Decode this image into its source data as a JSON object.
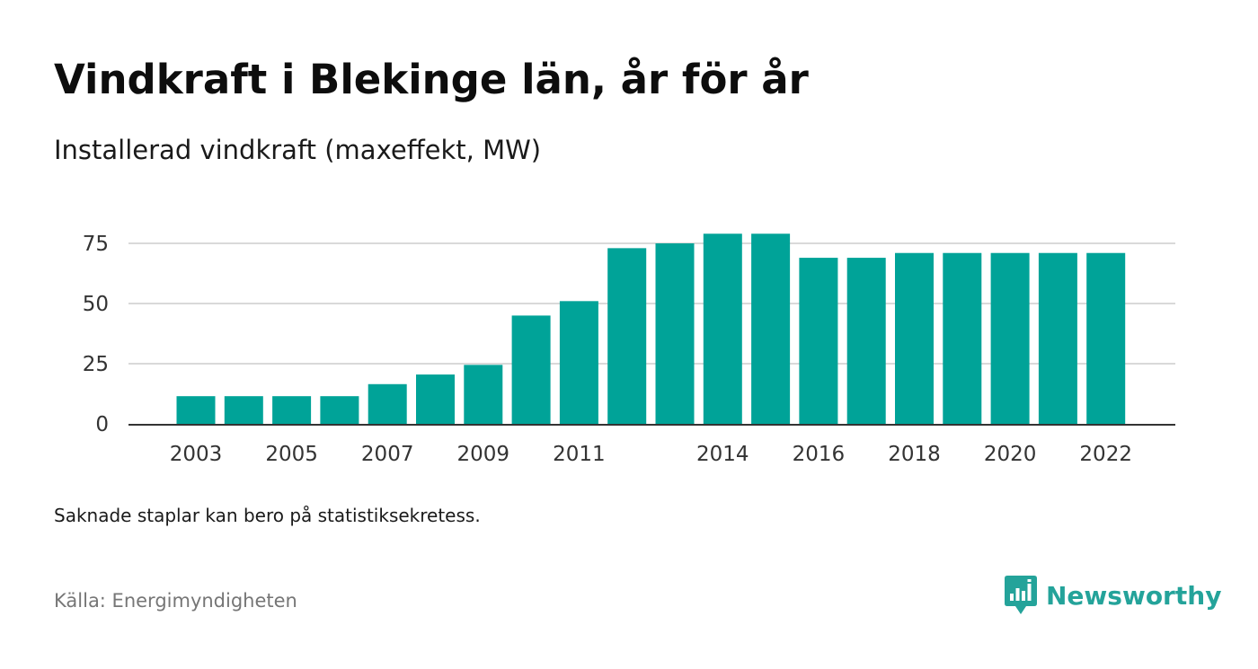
{
  "title": "Vindkraft i Blekinge län, år för år",
  "subtitle": "Installerad vindkraft (maxeffekt, MW)",
  "note": "Saknade staplar kan bero på statistiksekretess.",
  "source": "Källa: Energimyndigheten",
  "brand": {
    "name": "Newsworthy",
    "icon": "newsworthy-logo-icon",
    "color": "#24a39a"
  },
  "chart_data": {
    "type": "bar",
    "title": "Vindkraft i Blekinge län, år för år",
    "subtitle": "Installerad vindkraft (maxeffekt, MW)",
    "xlabel": "",
    "ylabel": "",
    "categories": [
      "2003",
      "2004",
      "2005",
      "2006",
      "2007",
      "2008",
      "2009",
      "2010",
      "2011",
      "2012",
      "2013",
      "2014",
      "2015",
      "2016",
      "2017",
      "2018",
      "2019",
      "2020",
      "2021",
      "2022"
    ],
    "values": [
      11.5,
      11.5,
      11.5,
      11.5,
      16.5,
      20.5,
      24.5,
      45,
      51,
      73,
      75,
      79,
      79,
      69,
      69,
      71,
      71,
      71,
      71,
      71
    ],
    "x_tick_labels": [
      "2003",
      "2005",
      "2007",
      "2009",
      "2011",
      "2014",
      "2016",
      "2018",
      "2020",
      "2022"
    ],
    "y_ticks": [
      0,
      25,
      50,
      75
    ],
    "ylim": [
      0,
      79
    ],
    "grid": true,
    "legend": "none",
    "bar_color": "#00a398",
    "grid_color": "#d9d9d9",
    "axis_color": "#333333"
  }
}
